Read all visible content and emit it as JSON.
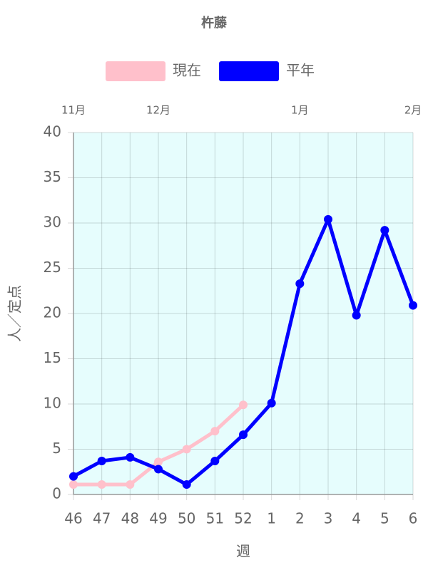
{
  "chart_data": {
    "type": "line",
    "title": "杵藤",
    "categories": [
      "46",
      "47",
      "48",
      "49",
      "50",
      "51",
      "52",
      "1",
      "2",
      "3",
      "4",
      "5",
      "6"
    ],
    "top_labels": [
      "11月",
      null,
      null,
      "12月",
      null,
      null,
      null,
      null,
      "1月",
      null,
      null,
      null,
      "2月"
    ],
    "series": [
      {
        "name": "現在",
        "color": "#ffc0cb",
        "values": [
          1.1,
          1.1,
          1.1,
          3.6,
          5.0,
          7.0,
          9.9,
          null,
          null,
          null,
          null,
          null,
          null
        ]
      },
      {
        "name": "平年",
        "color": "#0000ff",
        "values": [
          2.0,
          3.7,
          4.1,
          2.8,
          1.1,
          3.7,
          6.6,
          10.1,
          23.3,
          30.4,
          19.8,
          29.2,
          20.9
        ]
      }
    ],
    "ylim": [
      0,
      40
    ],
    "yticks": [
      0,
      5,
      10,
      15,
      20,
      25,
      30,
      35,
      40
    ],
    "xlabel": "週",
    "ylabel": "人／定点",
    "grid": true,
    "background": "#e6fdfd"
  }
}
